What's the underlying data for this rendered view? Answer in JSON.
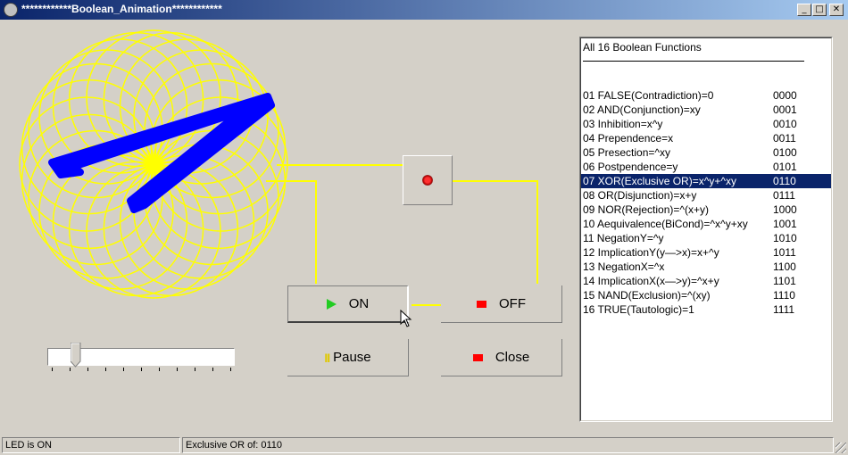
{
  "window": {
    "title": "************Boolean_Animation************",
    "minimize_glyph": "_",
    "maximize_glyph": "□",
    "close_glyph": "✕"
  },
  "buttons": {
    "on_label": "ON",
    "off_label": "OFF",
    "pause_glyph": "II",
    "pause_label": "Pause",
    "close_label": "Close"
  },
  "slider": {
    "value_fraction": 0.12
  },
  "list": {
    "header": "All 16 Boolean Functions",
    "selected_index": 6,
    "items": [
      {
        "fn": "01 FALSE(Contradiction)=0",
        "code": "0000"
      },
      {
        "fn": "02 AND(Conjunction)=xy",
        "code": "0001"
      },
      {
        "fn": "03 Inhibition=x^y",
        "code": "0010"
      },
      {
        "fn": "04 Prependence=x",
        "code": "0011"
      },
      {
        "fn": "05 Presection=^xy",
        "code": "0100"
      },
      {
        "fn": "06 Postpendence=y",
        "code": "0101"
      },
      {
        "fn": "07 XOR(Exclusive OR)=x^y+^xy",
        "code": "0110"
      },
      {
        "fn": "08 OR(Disjunction)=x+y",
        "code": "0111"
      },
      {
        "fn": "09 NOR(Rejection)=^(x+y)",
        "code": "1000"
      },
      {
        "fn": "10 Aequivalence(BiCond)=^x^y+xy",
        "code": "1001"
      },
      {
        "fn": "11 NegationY=^y",
        "code": "1010"
      },
      {
        "fn": "12 ImplicationY(y—>x)=x+^y",
        "code": "1011"
      },
      {
        "fn": "13 NegationX=^x",
        "code": "1100"
      },
      {
        "fn": "14 ImplicationX(x—>y)=^x+y",
        "code": "1101"
      },
      {
        "fn": "15 NAND(Exclusion)=^(xy)",
        "code": "1110"
      },
      {
        "fn": "16 TRUE(Tautologic)=1",
        "code": "1111"
      }
    ]
  },
  "status": {
    "left": "LED is ON",
    "right": "Exclusive OR of: 0110"
  },
  "colors": {
    "wire_yellow": "#ffff00",
    "pointer_blue": "#0000ff",
    "selection": "#0a246a",
    "led_red": "#ff0000"
  }
}
